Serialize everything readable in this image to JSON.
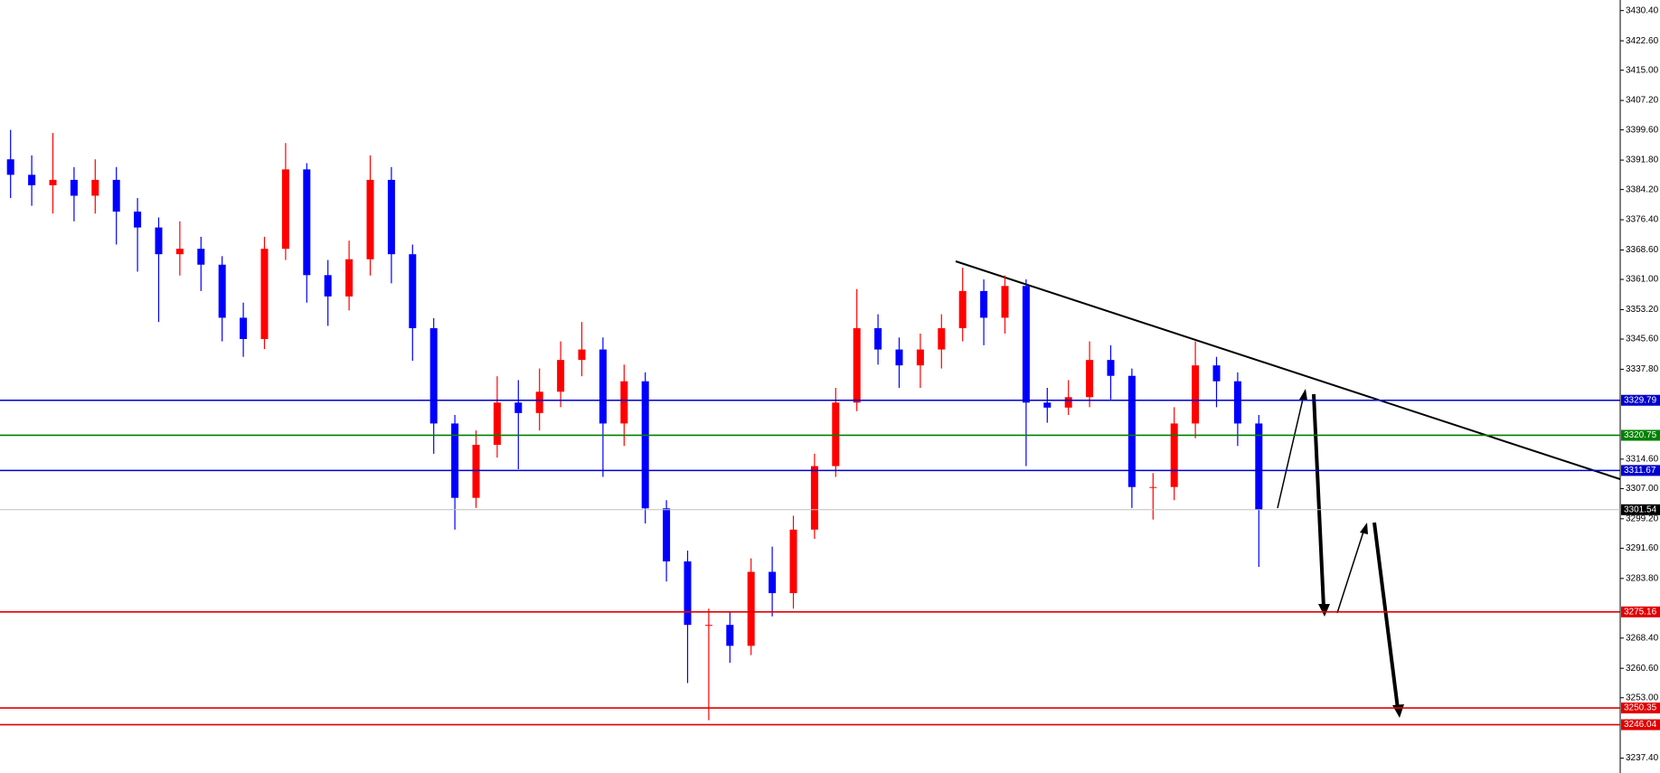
{
  "chart_data": {
    "type": "candlestick",
    "up_color": "#ff0000",
    "down_color": "#0000ff",
    "open": [
      3392.0,
      3388.0,
      3385.3,
      3386.7,
      3382.6,
      3386.7,
      3378.5,
      3374.4,
      3367.5,
      3368.9,
      3364.8,
      3351.1,
      3345.6,
      3368.9,
      3389.4,
      3362.1,
      3356.6,
      3366.2,
      3386.7,
      3367.5,
      3348.4,
      3323.8,
      3304.6,
      3318.3,
      3329.2,
      3326.5,
      3332.0,
      3340.2,
      3342.9,
      3323.8,
      3334.7,
      3301.9,
      3288.2,
      3271.8,
      3271.8,
      3266.4,
      3285.5,
      3280.0,
      3296.4,
      3312.8,
      3329.2,
      3348.4,
      3342.9,
      3338.8,
      3342.9,
      3348.4,
      3358.0,
      3351.1,
      3359.3,
      3329.2,
      3327.9,
      3330.6,
      3340.2,
      3336.1,
      3307.4,
      3307.4,
      3323.8,
      3338.8,
      3334.7,
      3323.8
    ],
    "high": [
      3399.6,
      3393.0,
      3398.8,
      3390.0,
      3392.0,
      3390.0,
      3382.0,
      3377.0,
      3376.0,
      3372.0,
      3367.0,
      3355.0,
      3372.0,
      3396.2,
      3391.0,
      3366.0,
      3371.0,
      3393.0,
      3390.0,
      3370.0,
      3351.0,
      3326.0,
      3322.0,
      3336.0,
      3335.0,
      3338.0,
      3345.0,
      3350.0,
      3346.0,
      3339.0,
      3337.0,
      3304.0,
      3291.0,
      3276.0,
      3275.0,
      3289.0,
      3292.0,
      3300.0,
      3316.0,
      3333.0,
      3358.5,
      3352.0,
      3346.0,
      3347.0,
      3352.0,
      3364.0,
      3361.0,
      3362.0,
      3361.0,
      3333.0,
      3335.0,
      3345.0,
      3344.0,
      3338.0,
      3311.0,
      3328.0,
      3345.0,
      3341.0,
      3337.0,
      3326.0
    ],
    "low": [
      3382.0,
      3380.0,
      3378.0,
      3376.0,
      3378.0,
      3370.0,
      3363.0,
      3350.0,
      3362.0,
      3358.0,
      3345.0,
      3341.0,
      3343.0,
      3366.0,
      3355.0,
      3349.0,
      3353.0,
      3362.0,
      3360.0,
      3340.0,
      3316.0,
      3296.4,
      3302.0,
      3315.0,
      3312.0,
      3322.0,
      3328.0,
      3336.0,
      3310.0,
      3318.0,
      3298.0,
      3283.0,
      3256.8,
      3247.2,
      3262.0,
      3264.0,
      3274.0,
      3276.0,
      3294.0,
      3310.0,
      3327.0,
      3339.0,
      3333.0,
      3333.0,
      3338.0,
      3345.0,
      3344.0,
      3347.0,
      3312.8,
      3324.0,
      3326.0,
      3328.0,
      3330.0,
      3302.0,
      3299.0,
      3304.0,
      3320.0,
      3328.0,
      3318.0,
      3286.8
    ],
    "close": [
      3388.0,
      3385.3,
      3386.7,
      3382.6,
      3386.7,
      3378.5,
      3374.4,
      3367.5,
      3368.9,
      3364.8,
      3351.1,
      3345.6,
      3368.9,
      3389.4,
      3362.1,
      3356.6,
      3366.2,
      3386.7,
      3367.5,
      3348.4,
      3323.8,
      3304.6,
      3318.3,
      3329.2,
      3326.5,
      3332.0,
      3340.2,
      3342.9,
      3323.8,
      3334.7,
      3301.9,
      3288.2,
      3271.8,
      3271.8,
      3266.4,
      3285.5,
      3280.0,
      3296.4,
      3312.8,
      3329.2,
      3348.4,
      3342.9,
      3338.8,
      3342.9,
      3348.4,
      3358.0,
      3351.1,
      3359.3,
      3329.2,
      3327.9,
      3330.6,
      3340.2,
      3336.1,
      3307.4,
      3307.4,
      3323.8,
      3338.8,
      3334.7,
      3323.8,
      3301.54
    ],
    "ylim": [
      3233.57,
      3433.13
    ],
    "yticks": [
      {
        "value": 3430.4,
        "label": "3430.40"
      },
      {
        "value": 3422.6,
        "label": "3422.60"
      },
      {
        "value": 3415.0,
        "label": "3415.00"
      },
      {
        "value": 3407.2,
        "label": "3407.20"
      },
      {
        "value": 3399.6,
        "label": "3399.60"
      },
      {
        "value": 3391.8,
        "label": "3391.80"
      },
      {
        "value": 3384.2,
        "label": "3384.20"
      },
      {
        "value": 3376.4,
        "label": "3376.40"
      },
      {
        "value": 3368.6,
        "label": "3368.60"
      },
      {
        "value": 3361.0,
        "label": "3361.00"
      },
      {
        "value": 3353.2,
        "label": "3353.20"
      },
      {
        "value": 3345.6,
        "label": "3345.60"
      },
      {
        "value": 3337.8,
        "label": "3337.80"
      },
      {
        "value": 3314.6,
        "label": "3314.60"
      },
      {
        "value": 3307.0,
        "label": "3307.00"
      },
      {
        "value": 3299.2,
        "label": "3299.20"
      },
      {
        "value": 3291.6,
        "label": "3291.60"
      },
      {
        "value": 3283.8,
        "label": "3283.80"
      },
      {
        "value": 3268.4,
        "label": "3268.40"
      },
      {
        "value": 3260.6,
        "label": "3260.60"
      },
      {
        "value": 3253.0,
        "label": "3253.00"
      },
      {
        "value": 3237.4,
        "label": "3237.40"
      }
    ],
    "levels": [
      {
        "value": 3329.79,
        "label": "3329.79",
        "color": "#0000cc"
      },
      {
        "value": 3320.75,
        "label": "3320.75",
        "color": "#008000"
      },
      {
        "value": 3311.67,
        "label": "3311.67",
        "color": "#0000cc"
      },
      {
        "value": 3301.54,
        "label": "3301.54",
        "color": "#c0c0c0",
        "label_color": "#000000"
      },
      {
        "value": 3275.16,
        "label": "3275.16",
        "color": "#e00000"
      },
      {
        "value": 3250.35,
        "label": "3250.35",
        "color": "#e00000"
      },
      {
        "value": 3246.04,
        "label": "3246.04",
        "color": "#e00000"
      }
    ]
  }
}
